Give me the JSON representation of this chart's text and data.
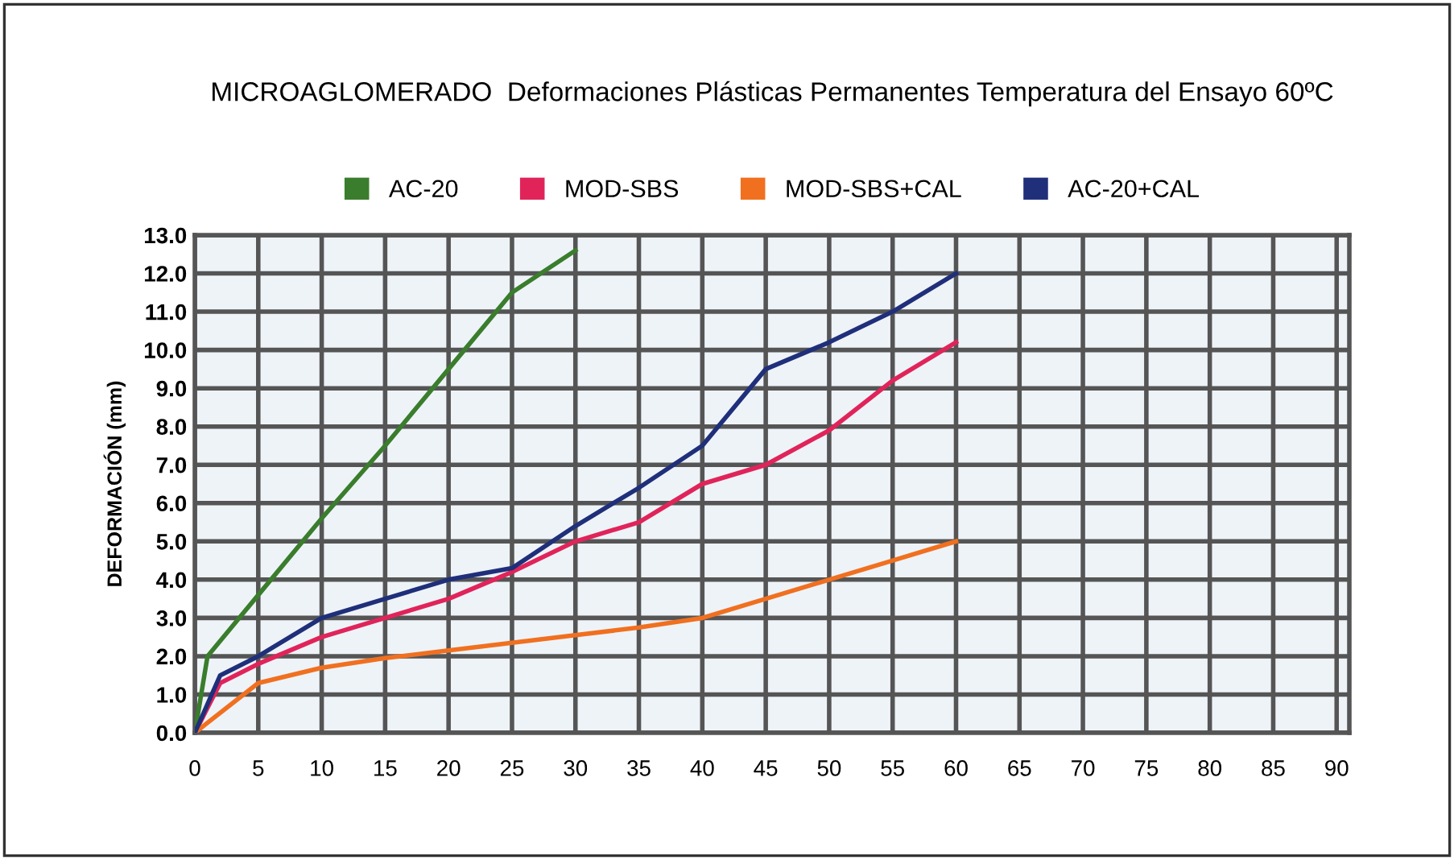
{
  "chart_data": {
    "type": "line",
    "title": "MICROAGLOMERADO  Deformaciones Plásticas Permanentes Temperatura del Ensayo 60ºC",
    "ylabel": "DEFORMACIÓN (mm)",
    "series": [
      {
        "name": "AC-20",
        "color": "#3a7d2c",
        "x": [
          0,
          1,
          5,
          10,
          15,
          20,
          25,
          30
        ],
        "values": [
          0,
          2,
          3.6,
          5.6,
          7.5,
          9.5,
          11.5,
          12.6
        ]
      },
      {
        "name": "MOD-SBS",
        "color": "#e0245a",
        "x": [
          0,
          2,
          5,
          10,
          15,
          20,
          25,
          30,
          35,
          40,
          45,
          50,
          55,
          60
        ],
        "values": [
          0,
          1.3,
          1.8,
          2.5,
          3,
          3.5,
          4.2,
          5,
          5.5,
          6.5,
          7,
          7.9,
          9.2,
          10.2
        ]
      },
      {
        "name": "MOD-SBS+CAL",
        "color": "#f07020",
        "x": [
          0,
          5,
          10,
          15,
          20,
          25,
          30,
          35,
          40,
          45,
          50,
          55,
          60
        ],
        "values": [
          0,
          1.3,
          1.7,
          1.95,
          2.15,
          2.35,
          2.55,
          2.75,
          3,
          3.5,
          4,
          4.5,
          5
        ]
      },
      {
        "name": "AC-20+CAL",
        "color": "#1f2f7a",
        "x": [
          0,
          2,
          5,
          10,
          15,
          20,
          25,
          30,
          35,
          40,
          45,
          50,
          55,
          60
        ],
        "values": [
          0,
          1.5,
          2,
          3,
          3.5,
          4,
          4.3,
          5.4,
          6.4,
          7.5,
          9.5,
          10.2,
          11,
          12
        ]
      }
    ],
    "xlim": [
      0,
      91
    ],
    "xticks": [
      0,
      5,
      10,
      15,
      20,
      25,
      30,
      35,
      40,
      45,
      50,
      55,
      60,
      65,
      70,
      75,
      80,
      85,
      90
    ],
    "ylim": [
      0,
      13
    ],
    "yticks": [
      {
        "value": 0,
        "label": "0.0"
      },
      {
        "value": 1,
        "label": "1.0"
      },
      {
        "value": 2,
        "label": "2.0"
      },
      {
        "value": 3,
        "label": "3.0"
      },
      {
        "value": 4,
        "label": "4.0"
      },
      {
        "value": 5,
        "label": "5.0"
      },
      {
        "value": 6,
        "label": "6.0"
      },
      {
        "value": 7,
        "label": "7.0"
      },
      {
        "value": 8,
        "label": "8.0"
      },
      {
        "value": 9,
        "label": "9.0"
      },
      {
        "value": 10,
        "label": "10.0"
      },
      {
        "value": 11,
        "label": "11.0"
      },
      {
        "value": 12,
        "label": "12.0"
      },
      {
        "value": 13,
        "label": "13.0"
      }
    ],
    "grid": true,
    "legend": "top",
    "marker": "none",
    "line_style": "solid"
  }
}
